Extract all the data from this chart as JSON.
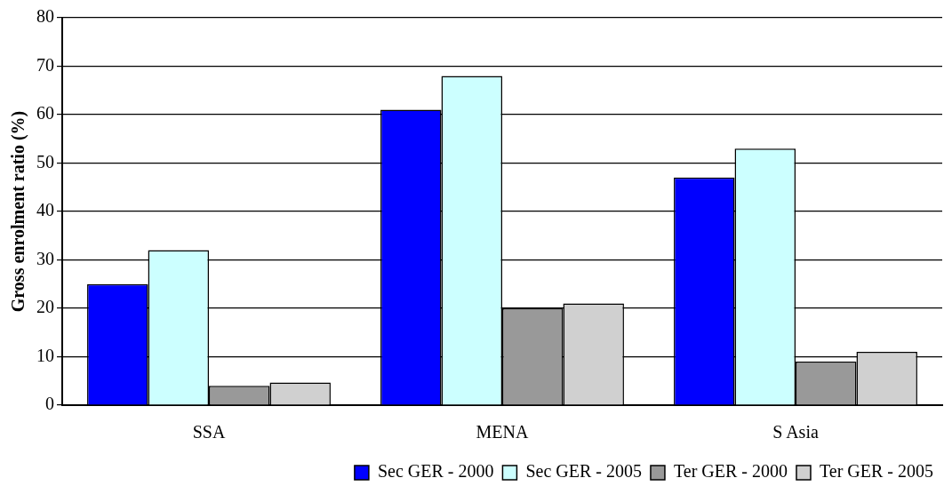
{
  "chart_data": {
    "type": "bar",
    "ylabel": "Gross enrolment ratio (%)",
    "categories": [
      "SSA",
      "MENA",
      "S Asia"
    ],
    "series": [
      {
        "name": "Sec GER - 2000",
        "color": "#0000ff",
        "values": [
          25,
          61,
          47
        ]
      },
      {
        "name": "Sec GER - 2005",
        "color": "#ccffff",
        "values": [
          32,
          68,
          53
        ]
      },
      {
        "name": "Ter GER - 2000",
        "color": "#999999",
        "values": [
          4,
          20,
          9
        ]
      },
      {
        "name": "Ter GER - 2005",
        "color": "#d0d0d0",
        "values": [
          4.7,
          21,
          11
        ]
      }
    ],
    "ylim": [
      0,
      80
    ],
    "yticks": [
      0,
      10,
      20,
      30,
      40,
      50,
      60,
      70,
      80
    ],
    "grid": "y",
    "legend": "bottom"
  }
}
